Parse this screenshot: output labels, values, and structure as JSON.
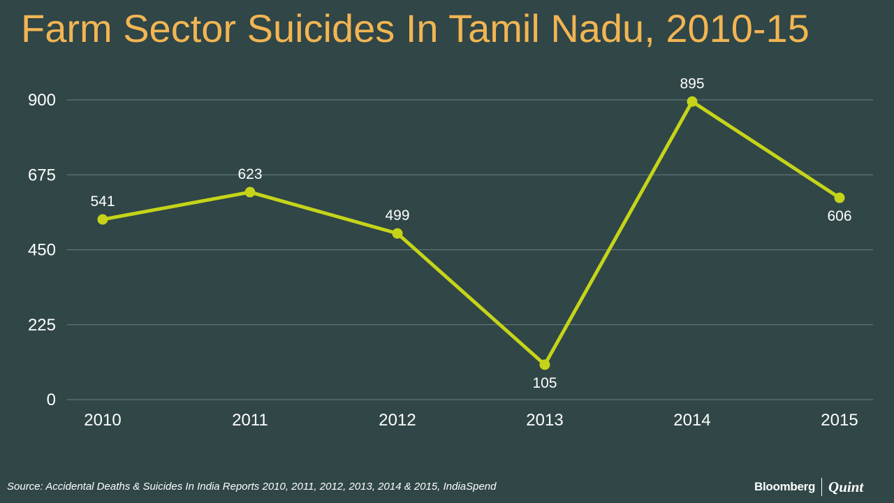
{
  "title": "Farm Sector Suicides In Tamil Nadu, 2010-15",
  "source": "Source: Accidental Deaths & Suicides In India Reports 2010, 2011, 2012, 2013, 2014 & 2015, IndiaSpend",
  "logo": {
    "brand": "Bloomberg",
    "partner": "Quint"
  },
  "colors": {
    "background": "#304647",
    "title": "#F2B553",
    "line": "#C5D418",
    "grid": "#6B8080",
    "text": "#ffffff"
  },
  "chart_data": {
    "type": "line",
    "title": "Farm Sector Suicides In Tamil Nadu, 2010-15",
    "xlabel": "",
    "ylabel": "",
    "categories": [
      "2010",
      "2011",
      "2012",
      "2013",
      "2014",
      "2015"
    ],
    "series": [
      {
        "values": [
          541,
          623,
          499,
          105,
          895,
          606
        ]
      }
    ],
    "data_labels": [
      "541",
      "623",
      "499",
      "105",
      "895",
      "606"
    ],
    "label_position": [
      "above",
      "above",
      "above",
      "below",
      "above",
      "below"
    ],
    "yticks": [
      0,
      225,
      450,
      675,
      900
    ],
    "ylim": [
      0,
      900
    ],
    "grid": true,
    "legend": "none"
  }
}
